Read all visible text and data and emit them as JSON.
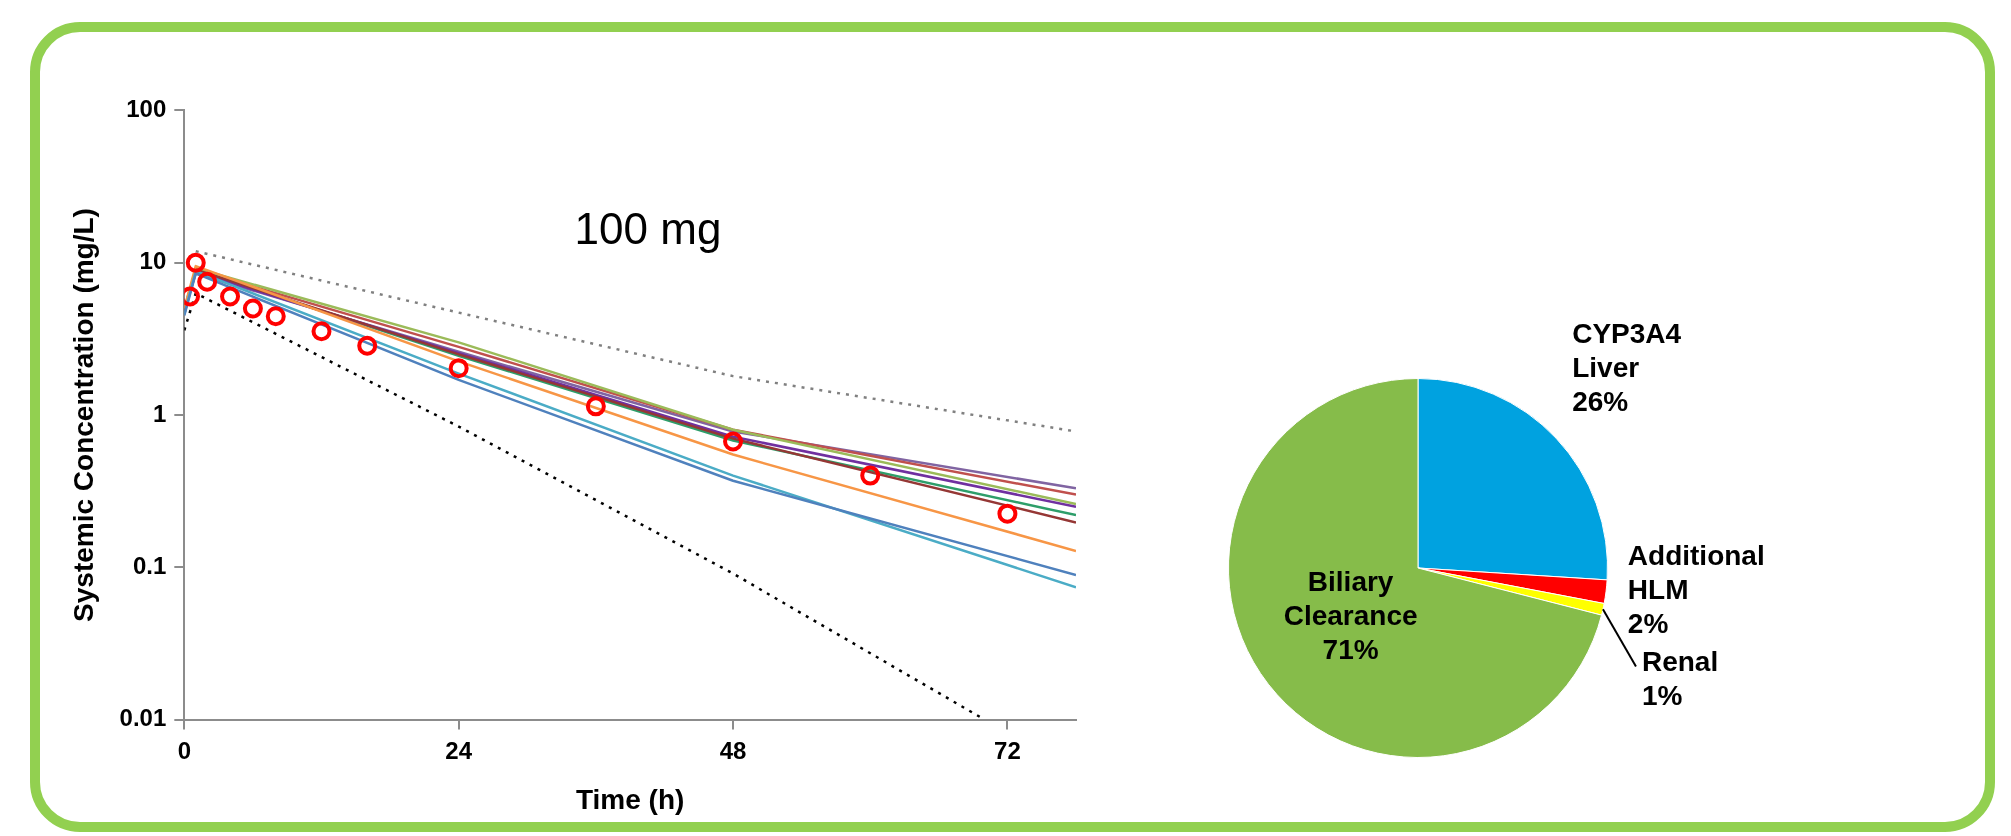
{
  "chart_data": [
    {
      "type": "line",
      "xlabel": "Time (h)",
      "ylabel": "Systemic Concentration (mg/L)",
      "annotations": [
        "100 mg"
      ],
      "xlim": [
        0,
        78
      ],
      "xticks": [
        0,
        24,
        48,
        72
      ],
      "ylim": [
        0.01,
        100
      ],
      "yticks": [
        0.01,
        0.1,
        1,
        10,
        100
      ],
      "log": "y",
      "series": [
        {
          "color": "#808080",
          "line_style": "dotted",
          "marker": "none",
          "x": [
            1,
            24,
            48,
            78
          ],
          "values": [
            11.9,
            4.7,
            1.8,
            0.78
          ]
        },
        {
          "color": "#000000",
          "line_style": "dotted",
          "marker": "none",
          "x": [
            0,
            1,
            24,
            48,
            70
          ],
          "values": [
            3.6,
            6.3,
            0.84,
            0.091,
            0.01
          ]
        },
        {
          "color": "#4f81bd",
          "marker": "none",
          "x": [
            0,
            1,
            24,
            48,
            78
          ],
          "values": [
            4.5,
            8.5,
            1.7,
            0.37,
            0.089
          ]
        },
        {
          "color": "#4bacc6",
          "marker": "none",
          "x": [
            0,
            1,
            24,
            48,
            78
          ],
          "values": [
            4.6,
            8.8,
            1.87,
            0.4,
            0.074
          ]
        },
        {
          "color": "#f79646",
          "marker": "none",
          "x": [
            0,
            1,
            24,
            48,
            78
          ],
          "values": [
            5,
            9.5,
            2.25,
            0.55,
            0.128
          ]
        },
        {
          "color": "#953735",
          "marker": "none",
          "x": [
            0,
            1,
            24,
            48,
            78
          ],
          "values": [
            4.8,
            9,
            2.5,
            0.7,
            0.197
          ]
        },
        {
          "color": "#7030a0",
          "marker": "none",
          "x": [
            0,
            1,
            24,
            48,
            78
          ],
          "values": [
            4.8,
            8.7,
            2.55,
            0.72,
            0.25
          ]
        },
        {
          "color": "#9bbb59",
          "marker": "none",
          "x": [
            0,
            1,
            24,
            48,
            78
          ],
          "values": [
            4.6,
            9.2,
            3,
            0.8,
            0.26
          ]
        },
        {
          "color": "#c0504d",
          "marker": "none",
          "x": [
            0,
            1,
            24,
            48,
            78
          ],
          "values": [
            4.8,
            9,
            2.8,
            0.8,
            0.3
          ]
        },
        {
          "color": "#8064a2",
          "marker": "none",
          "x": [
            0,
            1,
            24,
            48,
            78
          ],
          "values": [
            4.8,
            8.5,
            2.6,
            0.78,
            0.33
          ]
        },
        {
          "color": "#2e9e6a",
          "marker": "none",
          "x": [
            0,
            1,
            24,
            48,
            78
          ],
          "values": [
            5,
            9,
            2.45,
            0.68,
            0.22
          ]
        },
        {
          "type": "scatter",
          "color": "#ff0000",
          "marker": "circle",
          "x": [
            0.5,
            1,
            2,
            4,
            6,
            8,
            12,
            16,
            24,
            36,
            48,
            60,
            72
          ],
          "values": [
            6,
            10,
            7.5,
            6,
            5,
            4.45,
            3.55,
            2.85,
            2.03,
            1.14,
            0.67,
            0.4,
            0.225
          ]
        }
      ]
    },
    {
      "type": "pie",
      "categories": [
        "CYP3A4 Liver",
        "Additional HLM",
        "Renal",
        "Biliary Clearance"
      ],
      "values": [
        26,
        2,
        1,
        71
      ],
      "colors": [
        "#00a2e0",
        "#ff0000",
        "#ffff00",
        "#86bc4a"
      ],
      "value_labels": [
        "26%",
        "2%",
        "1%",
        "71%"
      ]
    }
  ]
}
